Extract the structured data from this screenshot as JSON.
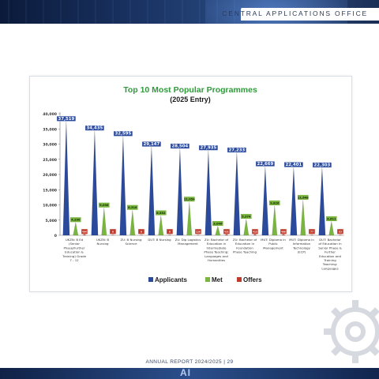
{
  "header": {
    "title": "CENTRAL APPLICATIONS OFFICE"
  },
  "footer": {
    "text": "ANNUAL REPORT 2024/2025 | 29",
    "mark": "AI"
  },
  "colors": {
    "applicants": "#2b4a9c",
    "met": "#7ab63f",
    "offers": "#c0392b",
    "title": "#2e9b3a"
  },
  "chart_data": {
    "type": "bar",
    "title": "Top 10 Most Popular Programmes",
    "subtitle": "(2025 Entry)",
    "ylim": [
      0,
      40000
    ],
    "yticks": [
      "0",
      "5,000",
      "10,000",
      "15,000",
      "20,000",
      "25,000",
      "30,000",
      "35,000",
      "40,000"
    ],
    "categories": [
      [
        "UKZN: B Ed",
        "(Senior",
        "Phase/Further",
        "Education &",
        "Training) Grade",
        "7 - 12"
      ],
      [
        "UKZN: B",
        "Nursing"
      ],
      [
        "ZU: B Nursing",
        "Science"
      ],
      [
        "DUT: B Nursing"
      ],
      [
        "ZU: Dip Logistics",
        "Management"
      ],
      [
        "ZU: Bachelor of",
        "Education in",
        "Intermediate",
        "Phase Teaching:",
        "Languages and",
        "Humanities"
      ],
      [
        "ZU: Bachelor of",
        "Education in",
        "Foundation",
        "Phase Teaching"
      ],
      [
        "MUT: Diploma in",
        "Public",
        "Management"
      ],
      [
        "MUT: Diploma in",
        "Information",
        "Technology",
        "(ECP)"
      ],
      [
        "DUT: Bachelor",
        "of Education in",
        "Senior Phase &",
        "Further",
        "Education and",
        "Training",
        "Teaching:",
        "Languages"
      ]
    ],
    "series": [
      {
        "name": "Applicants",
        "values": [
          37519,
          34435,
          32595,
          29147,
          28504,
          27935,
          27233,
          22669,
          22401,
          22303
        ],
        "labels": [
          "37,519",
          "34,435",
          "32,595",
          "29,147",
          "28,504",
          "27,935",
          "27,233",
          "22,669",
          "22,401",
          "22,303"
        ]
      },
      {
        "name": "Met",
        "values": [
          4290,
          9096,
          8316,
          6552,
          11054,
          3046,
          5374,
          9826,
          11648,
          4611
        ],
        "labels": [
          "4,290",
          "9,096",
          "8,316",
          "6,552",
          "11,054",
          "3,046",
          "5,374",
          "9,826",
          "11,648",
          "4,611"
        ]
      },
      {
        "name": "Offers",
        "values": [
          404,
          0,
          0,
          0,
          126,
          431,
          415,
          406,
          77,
          53
        ],
        "labels": [
          "404",
          "0",
          "0",
          "0",
          "126",
          "431",
          "415",
          "406",
          "77",
          "53"
        ]
      }
    ],
    "legend": "bottom"
  }
}
